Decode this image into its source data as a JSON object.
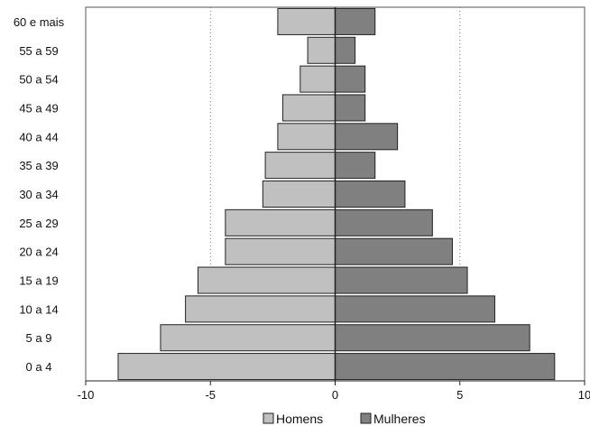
{
  "chart_data": {
    "type": "bar",
    "orientation": "horizontal",
    "layout": "population-pyramid",
    "categories": [
      "0 a 4",
      "5 a 9",
      "10 a 14",
      "15 a 19",
      "20 a 24",
      "25 a 29",
      "30 a 34",
      "35 a 39",
      "40 a 44",
      "45 a 49",
      "50 a 54",
      "55 a 59",
      "60 e mais"
    ],
    "series": [
      {
        "name": "Homens",
        "color": "#c0c0c0",
        "values": [
          -8.7,
          -7.0,
          -6.0,
          -5.5,
          -4.4,
          -4.4,
          -2.9,
          -2.8,
          -2.3,
          -2.1,
          -1.4,
          -1.1,
          -2.3
        ]
      },
      {
        "name": "Mulheres",
        "color": "#808080",
        "values": [
          8.8,
          7.8,
          6.4,
          5.3,
          4.7,
          3.9,
          2.8,
          1.6,
          2.5,
          1.2,
          1.2,
          0.8,
          1.6
        ]
      }
    ],
    "xlim": [
      -10,
      10
    ],
    "xticks": [
      -10,
      -5,
      0,
      5,
      10
    ],
    "xtick_labels": [
      "-10",
      "-5",
      "0",
      "5",
      "10"
    ],
    "gridlines": [
      -5,
      5
    ],
    "grid_style": "dotted",
    "legend_position": "bottom",
    "title": "",
    "xlabel": "",
    "ylabel": ""
  }
}
